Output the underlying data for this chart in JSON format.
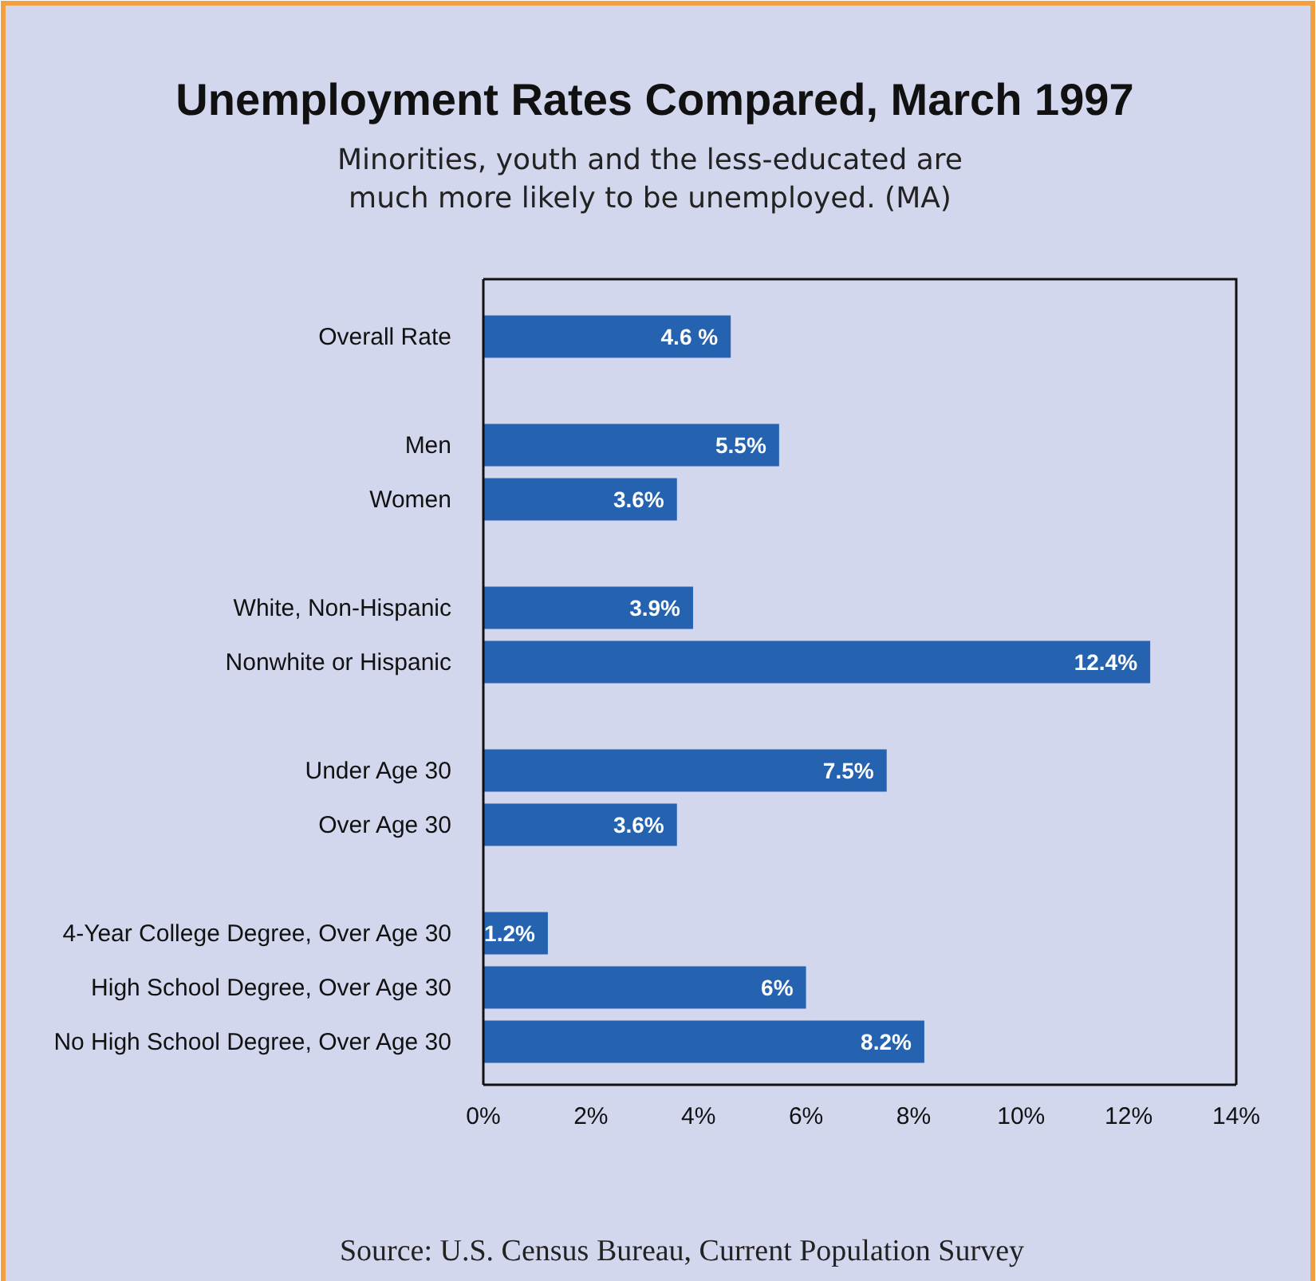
{
  "chart_data": {
    "type": "bar",
    "orientation": "horizontal",
    "title": "Unemployment Rates Compared, March 1997",
    "subtitle": "Minorities, youth and the less-educated are much more likely to be unemployed. (MA)",
    "categories": [
      "Overall Rate",
      null,
      "Men",
      "Women",
      null,
      "White, Non-Hispanic",
      "Nonwhite or Hispanic",
      null,
      "Under Age 30",
      "Over Age 30",
      null,
      "4-Year College Degree, Over Age 30",
      "High School Degree, Over Age 30",
      "No High School Degree, Over Age 30"
    ],
    "values": [
      4.6,
      null,
      5.5,
      3.6,
      null,
      3.9,
      12.4,
      null,
      7.5,
      3.6,
      null,
      1.2,
      6,
      8.2
    ],
    "value_labels": [
      "4.6 %",
      null,
      "5.5%",
      "3.6%",
      null,
      "3.9%",
      "12.4%",
      null,
      "7.5%",
      "3.6%",
      null,
      "1.2%",
      "6%",
      "8.2%"
    ],
    "color": "#2562b0",
    "xlim": [
      0,
      14
    ],
    "xticks": [
      {
        "value": 0,
        "label": "0%"
      },
      {
        "value": 2,
        "label": "2%"
      },
      {
        "value": 4,
        "label": "4%"
      },
      {
        "value": 6,
        "label": "6%"
      },
      {
        "value": 8,
        "label": "8%"
      },
      {
        "value": 10,
        "label": "10%"
      },
      {
        "value": 12,
        "label": "12%"
      },
      {
        "value": 14,
        "label": "14%"
      }
    ],
    "annotations": [
      "Source:  U.S. Census Bureau, Current Population Survey"
    ]
  }
}
